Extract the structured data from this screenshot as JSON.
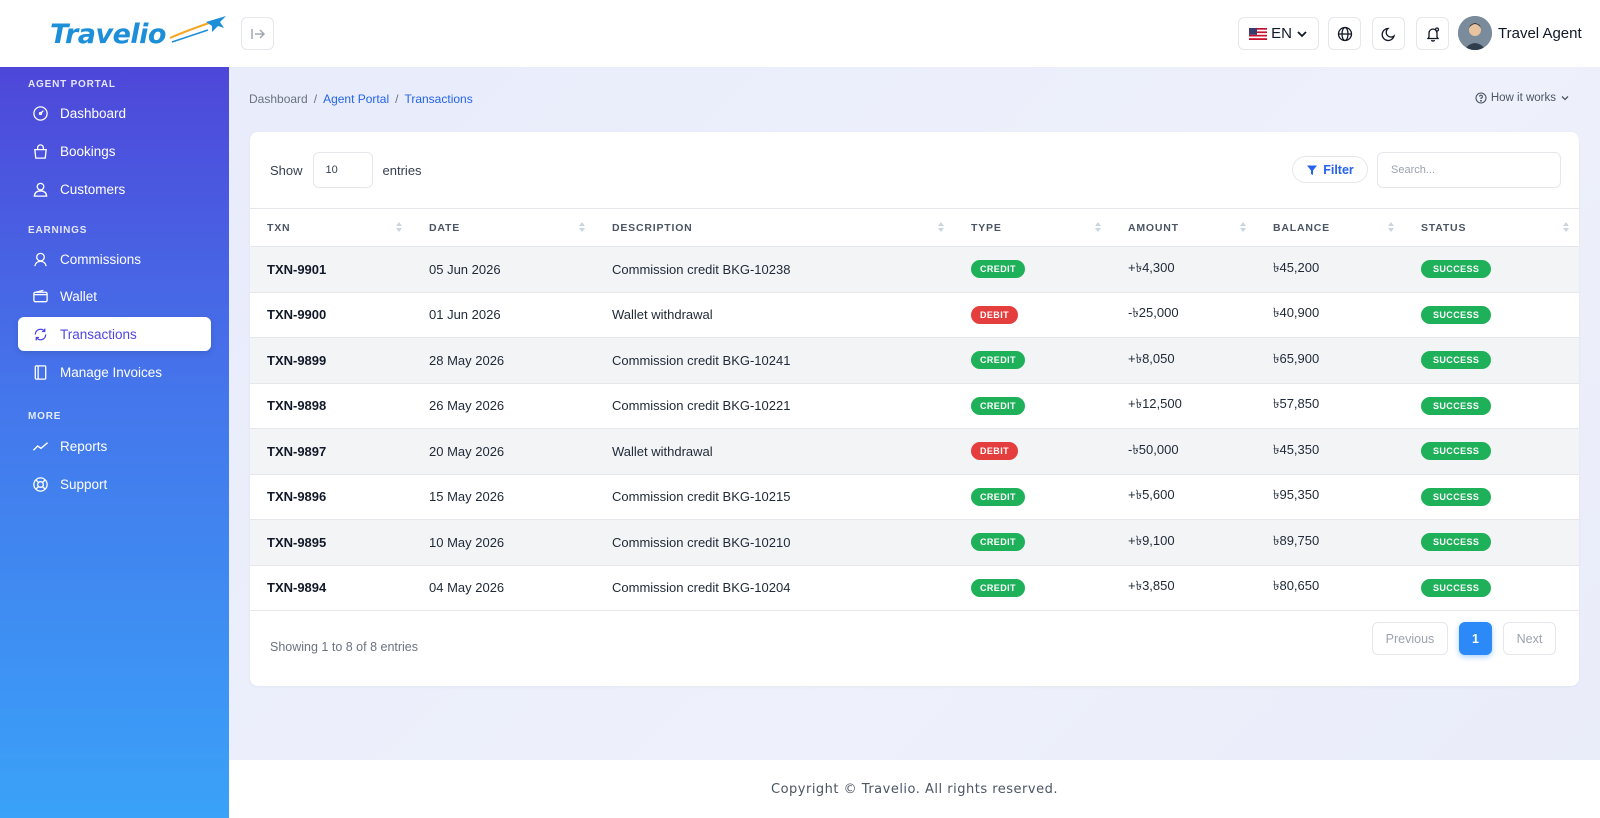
{
  "brand": {
    "name": "Travelio",
    "color": "#1d8fd8"
  },
  "header": {
    "language": "EN",
    "user_name": "Travel Agent"
  },
  "sidebar": {
    "sections": [
      {
        "title": "AGENT PORTAL"
      },
      {
        "title": "EARNINGS"
      },
      {
        "title": "MORE"
      }
    ],
    "items": [
      {
        "label": "Dashboard",
        "icon": "gauge-icon"
      },
      {
        "label": "Bookings",
        "icon": "bag-icon"
      },
      {
        "label": "Customers",
        "icon": "user-icon"
      },
      {
        "label": "Commissions",
        "icon": "award-icon"
      },
      {
        "label": "Wallet",
        "icon": "wallet-icon"
      },
      {
        "label": "Transactions",
        "icon": "refresh-icon",
        "active": true
      },
      {
        "label": "Manage Invoices",
        "icon": "invoice-icon"
      },
      {
        "label": "Reports",
        "icon": "trend-icon"
      },
      {
        "label": "Support",
        "icon": "lifebuoy-icon"
      }
    ]
  },
  "breadcrumb": {
    "home": "Dashboard",
    "parent": "Agent Portal",
    "current": "Transactions",
    "sep": "/"
  },
  "how_it_works": "How it works",
  "table_controls": {
    "show_label": "Show",
    "entries_value": "10",
    "entries_label": "entries",
    "filter_label": "Filter",
    "search_placeholder": "Search..."
  },
  "table": {
    "columns": [
      "TXN",
      "DATE",
      "DESCRIPTION",
      "TYPE",
      "AMOUNT",
      "BALANCE",
      "STATUS"
    ],
    "rows": [
      {
        "txn": "TXN-9901",
        "date": "05 Jun 2026",
        "description": "Commission credit BKG-10238",
        "type": "CREDIT",
        "amount": "+৳4,300",
        "balance": "৳45,200",
        "status": "SUCCESS"
      },
      {
        "txn": "TXN-9900",
        "date": "01 Jun 2026",
        "description": "Wallet withdrawal",
        "type": "DEBIT",
        "amount": "-৳25,000",
        "balance": "৳40,900",
        "status": "SUCCESS"
      },
      {
        "txn": "TXN-9899",
        "date": "28 May 2026",
        "description": "Commission credit BKG-10241",
        "type": "CREDIT",
        "amount": "+৳8,050",
        "balance": "৳65,900",
        "status": "SUCCESS"
      },
      {
        "txn": "TXN-9898",
        "date": "26 May 2026",
        "description": "Commission credit BKG-10221",
        "type": "CREDIT",
        "amount": "+৳12,500",
        "balance": "৳57,850",
        "status": "SUCCESS"
      },
      {
        "txn": "TXN-9897",
        "date": "20 May 2026",
        "description": "Wallet withdrawal",
        "type": "DEBIT",
        "amount": "-৳50,000",
        "balance": "৳45,350",
        "status": "SUCCESS"
      },
      {
        "txn": "TXN-9896",
        "date": "15 May 2026",
        "description": "Commission credit BKG-10215",
        "type": "CREDIT",
        "amount": "+৳5,600",
        "balance": "৳95,350",
        "status": "SUCCESS"
      },
      {
        "txn": "TXN-9895",
        "date": "10 May 2026",
        "description": "Commission credit BKG-10210",
        "type": "CREDIT",
        "amount": "+৳9,100",
        "balance": "৳89,750",
        "status": "SUCCESS"
      },
      {
        "txn": "TXN-9894",
        "date": "04 May 2026",
        "description": "Commission credit BKG-10204",
        "type": "CREDIT",
        "amount": "+৳3,850",
        "balance": "৳80,650",
        "status": "SUCCESS"
      }
    ]
  },
  "pagination": {
    "info": "Showing 1 to 8 of 8 entries",
    "previous": "Previous",
    "current_page": "1",
    "next": "Next"
  },
  "footer": {
    "copyright": "Copyright © Travelio. All rights reserved."
  },
  "colors": {
    "credit": "#1fb15a",
    "debit": "#e53e3e",
    "accent": "#2b8af7",
    "sidebar_top": "#4e47d9",
    "sidebar_bottom": "#3aa2f8"
  }
}
